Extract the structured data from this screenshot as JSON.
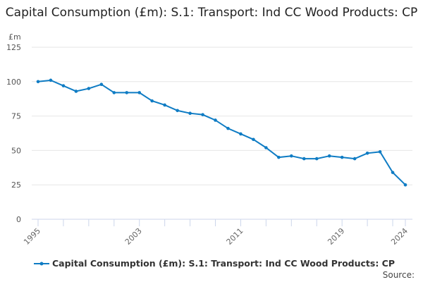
{
  "chart_data": {
    "type": "line",
    "title": "Capital Consumption (£m): S.1: Transport: Ind CC Wood Products: CP",
    "ylabel": "£m",
    "ylim": [
      0,
      125
    ],
    "yticks": [
      0,
      25,
      50,
      75,
      100,
      125
    ],
    "xticks": [
      "1995",
      "2003",
      "2011",
      "2019",
      "2024"
    ],
    "grid": true,
    "legend_position": "bottom",
    "series": [
      {
        "name": "Capital Consumption (£m): S.1: Transport: Ind CC Wood Products: CP",
        "color": "#0f7cc4",
        "x": [
          1995,
          1996,
          1997,
          1998,
          1999,
          2000,
          2001,
          2002,
          2003,
          2004,
          2005,
          2006,
          2007,
          2008,
          2009,
          2010,
          2011,
          2012,
          2013,
          2014,
          2015,
          2016,
          2017,
          2018,
          2019,
          2020,
          2021,
          2022,
          2023,
          2024
        ],
        "values": [
          100,
          101,
          97,
          93,
          95,
          98,
          92,
          92,
          92,
          86,
          83,
          79,
          77,
          76,
          72,
          66,
          62,
          58,
          52,
          45,
          46,
          44,
          44,
          46,
          45,
          44,
          48,
          49,
          34,
          25
        ]
      }
    ]
  },
  "source_label": "Source:"
}
